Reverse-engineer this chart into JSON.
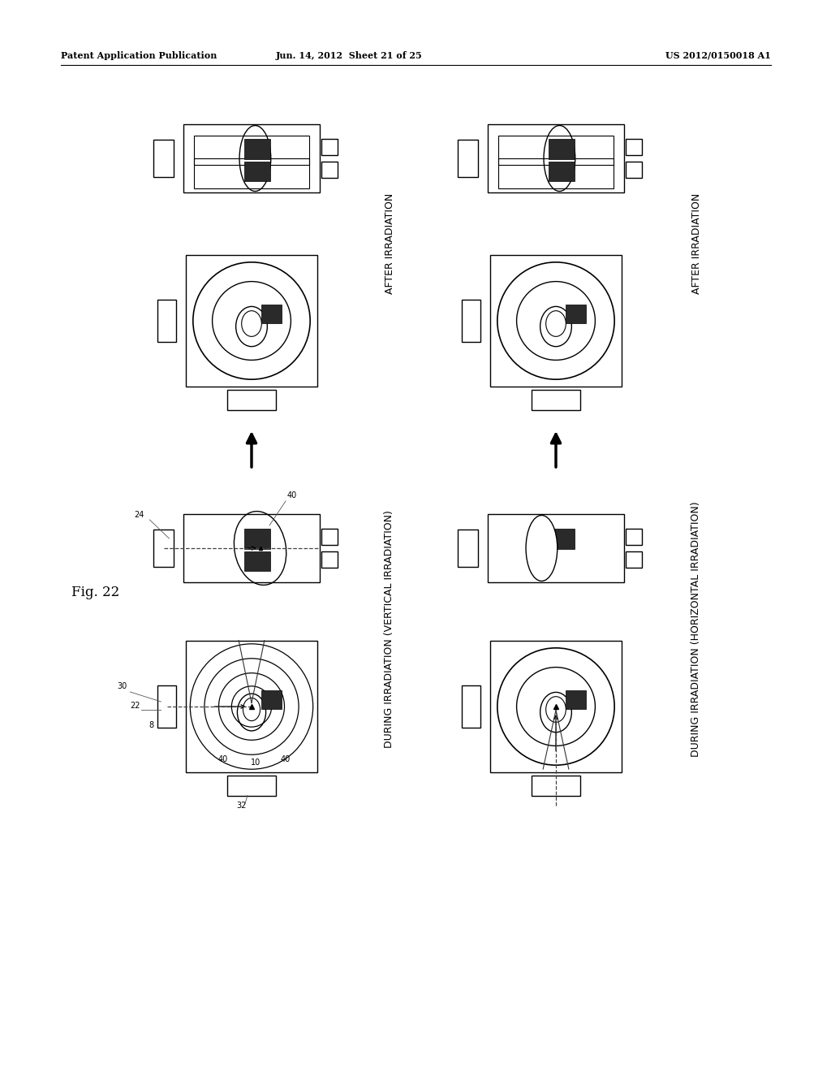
{
  "header_left": "Patent Application Publication",
  "header_mid": "Jun. 14, 2012  Sheet 21 of 25",
  "header_right": "US 2012/0150018 A1",
  "fig_label": "Fig. 22",
  "bg_color": "#ffffff",
  "labels": {
    "top_left_rot": "AFTER IRRADIATION",
    "top_right_rot": "AFTER IRRADIATION",
    "bot_left_rot": "DURING IRRADIATION (VERTICAL IRRADIATION)",
    "bot_right_rot": "DURING IRRADIATION (HORIZONTAL IRRADIATION)"
  }
}
